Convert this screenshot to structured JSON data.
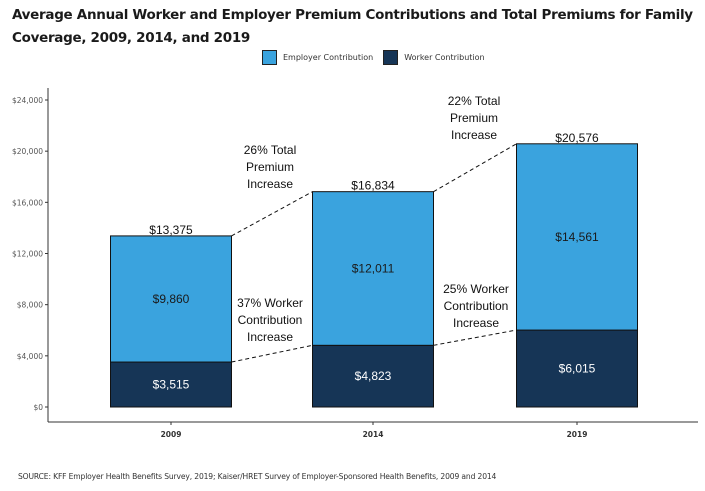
{
  "title": "Average Annual Worker and Employer Premium Contributions and Total Premiums for Family Coverage, 2009, 2014, and 2019",
  "source": "SOURCE: KFF Employer Health Benefits Survey, 2019; Kaiser/HRET Survey of Employer-Sponsored Health Benefits, 2009 and 2014",
  "colors": {
    "employer": "#3aa3de",
    "worker": "#163556",
    "axis": "#333333"
  },
  "chart_data": {
    "type": "bar",
    "stacked": true,
    "title": "Average Annual Worker and Employer Premium Contributions and Total Premiums for Family Coverage, 2009, 2014, and 2019",
    "xlabel": "",
    "ylabel": "",
    "categories": [
      "2009",
      "2014",
      "2019"
    ],
    "series": [
      {
        "name": "Worker Contribution",
        "values": [
          3515,
          4823,
          6015
        ],
        "labels": [
          "$3,515",
          "$4,823",
          "$6,015"
        ],
        "color": "#163556"
      },
      {
        "name": "Employer Contribution",
        "values": [
          9860,
          12011,
          14561
        ],
        "labels": [
          "$9,860",
          "$12,011",
          "$14,561"
        ],
        "color": "#3aa3de"
      }
    ],
    "totals": [
      13375,
      16834,
      20576
    ],
    "total_labels": [
      "$13,375",
      "$16,834",
      "$20,576"
    ],
    "ylim": [
      0,
      24000
    ],
    "yticks": [
      0,
      4000,
      8000,
      12000,
      16000,
      20000,
      24000
    ],
    "ytick_labels": [
      "$0",
      "$4,000",
      "$8,000",
      "$12,000",
      "$16,000",
      "$20,000",
      "$24,000"
    ],
    "grid": false,
    "legend": {
      "position": "top-center",
      "entries": [
        "Employer Contribution",
        "Worker Contribution"
      ]
    },
    "annotations": [
      {
        "text": [
          "26% Total",
          "Premium",
          "Increase"
        ],
        "between": [
          "2009",
          "2014"
        ],
        "level": "total"
      },
      {
        "text": [
          "22% Total",
          "Premium",
          "Increase"
        ],
        "between": [
          "2014",
          "2019"
        ],
        "level": "total"
      },
      {
        "text": [
          "37% Worker",
          "Contribution",
          "Increase"
        ],
        "between": [
          "2009",
          "2014"
        ],
        "level": "worker"
      },
      {
        "text": [
          "25% Worker",
          "Contribution",
          "Increase"
        ],
        "between": [
          "2014",
          "2019"
        ],
        "level": "worker"
      }
    ]
  }
}
